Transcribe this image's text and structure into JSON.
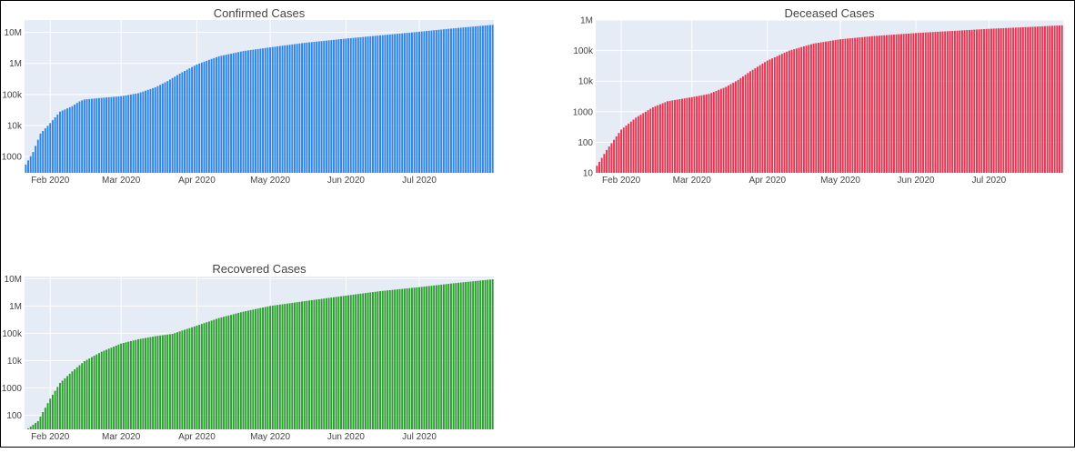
{
  "chart_data": [
    {
      "type": "bar",
      "title": "Confirmed Cases",
      "color": "#2E86E8",
      "x_start": "2020-01-22",
      "x_end": "2020-07-31",
      "x_tick_labels": [
        "Feb 2020",
        "Mar 2020",
        "Apr 2020",
        "May 2020",
        "Jun 2020",
        "Jul 2020"
      ],
      "x_tick_dates": [
        "2020-02-01",
        "2020-03-01",
        "2020-04-01",
        "2020-05-01",
        "2020-06-01",
        "2020-07-01"
      ],
      "y_scale": "log",
      "ylim": [
        300,
        25000000
      ],
      "y_tick_labels": [
        "1000",
        "10k",
        "100k",
        "1M",
        "10M"
      ],
      "y_tick_values": [
        1000,
        10000,
        100000,
        1000000,
        10000000
      ],
      "series_points": [
        [
          "2020-01-22",
          555
        ],
        [
          "2020-01-25",
          1400
        ],
        [
          "2020-01-28",
          5500
        ],
        [
          "2020-02-01",
          12000
        ],
        [
          "2020-02-05",
          28000
        ],
        [
          "2020-02-10",
          42000
        ],
        [
          "2020-02-13",
          60000
        ],
        [
          "2020-02-15",
          69000
        ],
        [
          "2020-02-22",
          78000
        ],
        [
          "2020-03-01",
          88000
        ],
        [
          "2020-03-08",
          110000
        ],
        [
          "2020-03-15",
          170000
        ],
        [
          "2020-03-20",
          270000
        ],
        [
          "2020-03-25",
          470000
        ],
        [
          "2020-04-01",
          930000
        ],
        [
          "2020-04-10",
          1700000
        ],
        [
          "2020-04-20",
          2500000
        ],
        [
          "2020-05-01",
          3300000
        ],
        [
          "2020-05-15",
          4600000
        ],
        [
          "2020-06-01",
          6300000
        ],
        [
          "2020-06-15",
          8000000
        ],
        [
          "2020-07-01",
          10500000
        ],
        [
          "2020-07-15",
          13500000
        ],
        [
          "2020-07-31",
          17500000
        ]
      ]
    },
    {
      "type": "bar",
      "title": "Deceased Cases",
      "color": "#E8344E",
      "x_start": "2020-01-22",
      "x_end": "2020-07-31",
      "x_tick_labels": [
        "Feb 2020",
        "Mar 2020",
        "Apr 2020",
        "May 2020",
        "Jun 2020",
        "Jul 2020"
      ],
      "x_tick_dates": [
        "2020-02-01",
        "2020-03-01",
        "2020-04-01",
        "2020-05-01",
        "2020-06-01",
        "2020-07-01"
      ],
      "y_scale": "log",
      "ylim": [
        10,
        1000000
      ],
      "y_tick_labels": [
        "10",
        "100",
        "1000",
        "10k",
        "100k",
        "1M"
      ],
      "y_tick_values": [
        10,
        100,
        1000,
        10000,
        100000,
        1000000
      ],
      "series_points": [
        [
          "2020-01-22",
          17
        ],
        [
          "2020-01-26",
          56
        ],
        [
          "2020-02-01",
          260
        ],
        [
          "2020-02-07",
          640
        ],
        [
          "2020-02-14",
          1400
        ],
        [
          "2020-02-20",
          2200
        ],
        [
          "2020-03-01",
          3000
        ],
        [
          "2020-03-08",
          3800
        ],
        [
          "2020-03-15",
          6500
        ],
        [
          "2020-03-20",
          11000
        ],
        [
          "2020-03-25",
          21000
        ],
        [
          "2020-04-01",
          47000
        ],
        [
          "2020-04-10",
          100000
        ],
        [
          "2020-04-20",
          170000
        ],
        [
          "2020-05-01",
          235000
        ],
        [
          "2020-05-15",
          300000
        ],
        [
          "2020-06-01",
          375000
        ],
        [
          "2020-06-15",
          435000
        ],
        [
          "2020-07-01",
          515000
        ],
        [
          "2020-07-15",
          580000
        ],
        [
          "2020-07-31",
          670000
        ]
      ]
    },
    {
      "type": "bar",
      "title": "Recovered Cases",
      "color": "#2CA02C",
      "x_start": "2020-01-22",
      "x_end": "2020-07-31",
      "x_tick_labels": [
        "Feb 2020",
        "Mar 2020",
        "Apr 2020",
        "May 2020",
        "Jun 2020",
        "Jul 2020"
      ],
      "x_tick_dates": [
        "2020-02-01",
        "2020-03-01",
        "2020-04-01",
        "2020-05-01",
        "2020-06-01",
        "2020-07-01"
      ],
      "y_scale": "log",
      "ylim": [
        30,
        12000000
      ],
      "y_tick_labels": [
        "100",
        "1000",
        "10k",
        "100k",
        "1M",
        "10M"
      ],
      "y_tick_values": [
        100,
        1000,
        10000,
        100000,
        1000000,
        10000000
      ],
      "series_points": [
        [
          "2020-01-22",
          28
        ],
        [
          "2020-01-27",
          60
        ],
        [
          "2020-02-01",
          400
        ],
        [
          "2020-02-05",
          1500
        ],
        [
          "2020-02-10",
          4000
        ],
        [
          "2020-02-15",
          9500
        ],
        [
          "2020-02-22",
          21000
        ],
        [
          "2020-03-01",
          42000
        ],
        [
          "2020-03-08",
          60000
        ],
        [
          "2020-03-15",
          78000
        ],
        [
          "2020-03-22",
          95000
        ],
        [
          "2020-04-01",
          190000
        ],
        [
          "2020-04-10",
          360000
        ],
        [
          "2020-04-20",
          620000
        ],
        [
          "2020-05-01",
          1000000
        ],
        [
          "2020-05-15",
          1500000
        ],
        [
          "2020-06-01",
          2400000
        ],
        [
          "2020-06-15",
          3500000
        ],
        [
          "2020-07-01",
          4900000
        ],
        [
          "2020-07-15",
          6800000
        ],
        [
          "2020-07-31",
          9500000
        ]
      ]
    }
  ]
}
